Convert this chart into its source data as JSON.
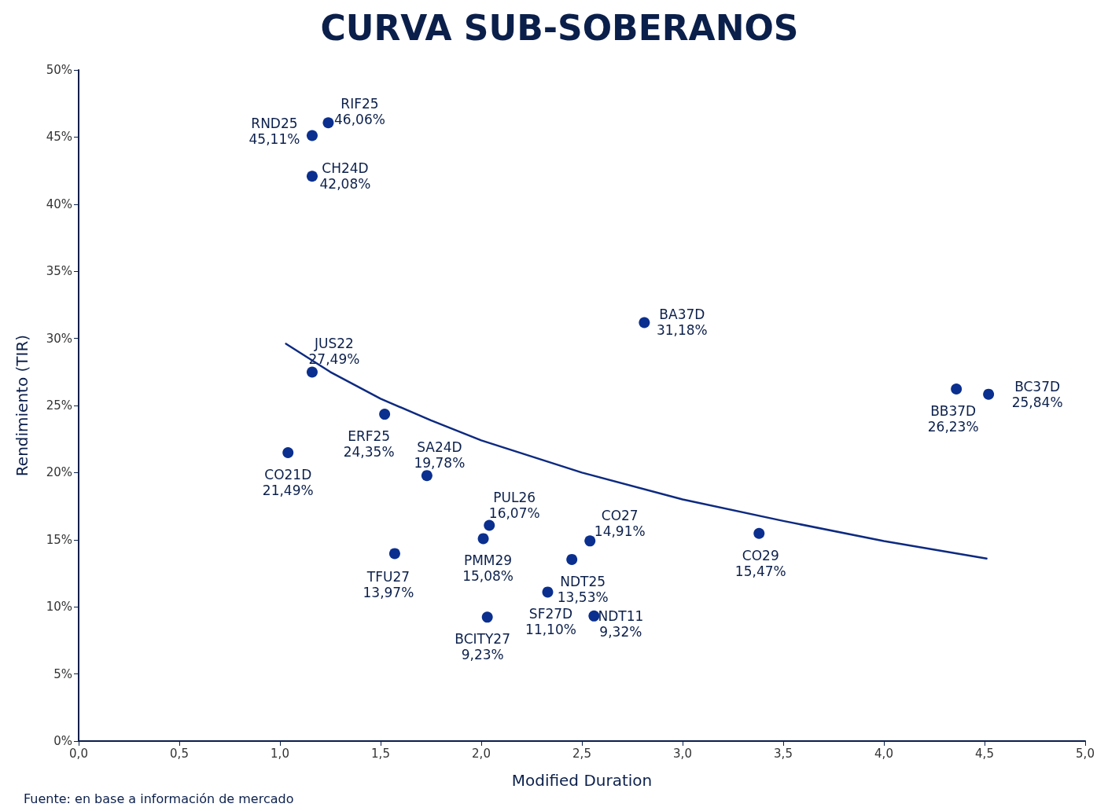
{
  "chart_data": {
    "type": "scatter",
    "title": "CURVA SUB-SOBERANOS",
    "xlabel": "Modified Duration",
    "ylabel": "Rendimiento (TIR)",
    "annotations": [
      "Fuente: en base a información de mercado"
    ],
    "xlim": [
      0,
      5
    ],
    "ylim": [
      0,
      50
    ],
    "xticks": [
      {
        "value": 0,
        "label": "0,0"
      },
      {
        "value": 0.5,
        "label": "0,5"
      },
      {
        "value": 1,
        "label": "1,0"
      },
      {
        "value": 1.5,
        "label": "1,5"
      },
      {
        "value": 2,
        "label": "2,0"
      },
      {
        "value": 2.5,
        "label": "2,5"
      },
      {
        "value": 3,
        "label": "3,0"
      },
      {
        "value": 3.5,
        "label": "3,5"
      },
      {
        "value": 4,
        "label": "4,0"
      },
      {
        "value": 4.5,
        "label": "4,5"
      },
      {
        "value": 5,
        "label": "5,0"
      }
    ],
    "yticks": [
      {
        "value": 0,
        "label": "0%"
      },
      {
        "value": 5,
        "label": "5%"
      },
      {
        "value": 10,
        "label": "10%"
      },
      {
        "value": 15,
        "label": "15%"
      },
      {
        "value": 20,
        "label": "20%"
      },
      {
        "value": 25,
        "label": "25%"
      },
      {
        "value": 30,
        "label": "30%"
      },
      {
        "value": 35,
        "label": "35%"
      },
      {
        "value": 40,
        "label": "40%"
      },
      {
        "value": 45,
        "label": "45%"
      },
      {
        "value": 50,
        "label": "50%"
      }
    ],
    "grid": false,
    "series": [
      {
        "marker": "circle",
        "color": "#0a2f8f",
        "x": [
          1.24,
          1.16,
          1.16,
          1.16,
          1.04,
          1.52,
          1.73,
          1.57,
          2.04,
          2.01,
          2.03,
          2.33,
          2.45,
          2.54,
          2.56,
          2.81,
          3.38,
          4.36,
          4.52
        ],
        "values": [
          46.06,
          45.11,
          42.08,
          27.49,
          21.49,
          24.35,
          19.78,
          13.97,
          16.07,
          15.08,
          9.23,
          11.1,
          13.53,
          14.91,
          9.32,
          31.18,
          15.47,
          26.23,
          25.84
        ],
        "value_labels": [
          "RIF25\n46,06%",
          "RND25\n45,11%",
          "CH24D\n42,08%",
          "JUS22\n27,49%",
          "CO21D\n21,49%",
          "ERF25\n24,35%",
          "SA24D\n19,78%",
          "TFU27\n13,97%",
          "PUL26\n16,07%",
          "PMM29\n15,08%",
          "BCITY27\n9,23%",
          "SF27D\n11,10%",
          "NDT25\n13,53%",
          "CO27\n14,91%",
          "NDT11\n9,32%",
          "BA37D\n31,18%",
          "CO29\n15,47%",
          "BB37D\n26,23%",
          "BC37D\n25,84%"
        ]
      },
      {
        "type": "line",
        "marker": "none",
        "line_style": "solid",
        "color": "#0d2a80",
        "x": [
          1.03,
          1.25,
          1.5,
          1.75,
          2,
          2.5,
          3,
          3.5,
          4,
          4.51
        ],
        "values": [
          29.6,
          27.5,
          25.5,
          23.9,
          22.4,
          20.0,
          18.0,
          16.4,
          14.9,
          13.6
        ]
      }
    ]
  }
}
